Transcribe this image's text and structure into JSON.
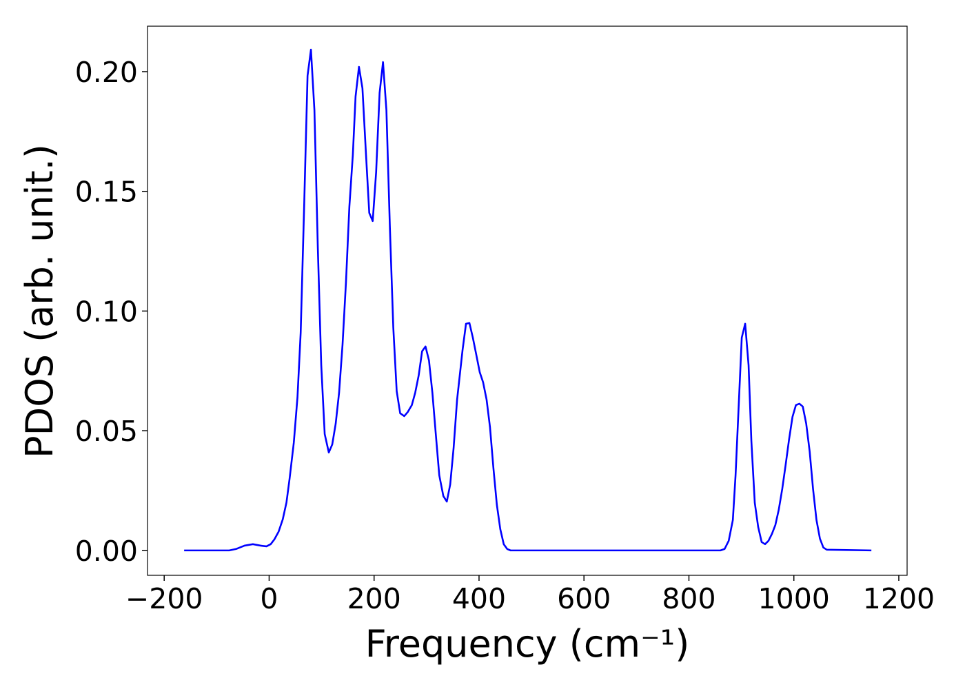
{
  "chart_data": {
    "type": "line",
    "xlabel": "Frequency (cm⁻¹)",
    "ylabel": "PDOS (arb. unit.)",
    "xlim": [
      -231.8,
      1215.8
    ],
    "ylim": [
      -0.0104,
      0.219
    ],
    "xticks": [
      {
        "value": -200,
        "label": "−200"
      },
      0,
      200,
      400,
      600,
      800,
      1000,
      1200
    ],
    "yticks": [
      {
        "value": 0,
        "label": "0.00"
      },
      0.05,
      {
        "value": 0.1,
        "label": "0.10"
      },
      0.15,
      {
        "value": 0.2,
        "label": "0.20"
      }
    ],
    "grid": false,
    "series": [
      {
        "color": "#0000ff",
        "x": [
          -162,
          -76,
          -63,
          -47,
          -31,
          -16,
          -5,
          3,
          10,
          18,
          26,
          33,
          39,
          47,
          54,
          60.1,
          66.7,
          73.2,
          79.7,
          86.3,
          92.8,
          99.3,
          105.9,
          113.7,
          120.3,
          126.8,
          133.3,
          139.9,
          146.4,
          152.9,
          159.5,
          164.7,
          171.2,
          177.8,
          184.3,
          190.8,
          197.4,
          203.9,
          210.5,
          217,
          223.5,
          230.1,
          236.6,
          243.1,
          249.7,
          257.5,
          264.1,
          271.9,
          278.4,
          285,
          291.5,
          298,
          304.6,
          311.1,
          317.6,
          324.2,
          332,
          338.6,
          345.1,
          351.6,
          358.2,
          368.6,
          375.2,
          381.7,
          388.2,
          394.8,
          401.3,
          407.8,
          414.4,
          420.9,
          427.5,
          434,
          440.5,
          447.1,
          453.6,
          460.1,
          860.1,
          868,
          875.8,
          883.7,
          888.9,
          895.4,
          900.7,
          907.2,
          913.7,
          919,
          925.5,
          932,
          938.6,
          945.1,
          951.6,
          958.2,
          964.7,
          971.2,
          977.8,
          984.3,
          990.8,
          997.4,
          1003.9,
          1010.5,
          1017,
          1023.5,
          1030.1,
          1036.6,
          1043.1,
          1049.7,
          1056.2,
          1062.7,
          1147.7
        ],
        "values": [
          0,
          0,
          0.0006,
          0.002,
          0.0026,
          0.002,
          0.0017,
          0.0026,
          0.0046,
          0.0078,
          0.013,
          0.02,
          0.03,
          0.045,
          0.064,
          0.0909,
          0.1436,
          0.1983,
          0.2092,
          0.1839,
          0.1263,
          0.0774,
          0.0486,
          0.0409,
          0.0443,
          0.0529,
          0.0659,
          0.086,
          0.1119,
          0.1436,
          0.1652,
          0.1896,
          0.202,
          0.1931,
          0.1666,
          0.141,
          0.1376,
          0.158,
          0.1911,
          0.204,
          0.1839,
          0.135,
          0.0932,
          0.0665,
          0.0573,
          0.0561,
          0.0578,
          0.0607,
          0.0659,
          0.0731,
          0.0832,
          0.0852,
          0.0794,
          0.0659,
          0.0486,
          0.0314,
          0.0227,
          0.0204,
          0.0276,
          0.0429,
          0.063,
          0.0837,
          0.0947,
          0.095,
          0.0889,
          0.0817,
          0.0745,
          0.0702,
          0.063,
          0.0515,
          0.0342,
          0.019,
          0.0089,
          0.0026,
          0.0006,
          0,
          0,
          0.0006,
          0.004,
          0.0127,
          0.0314,
          0.063,
          0.0889,
          0.0947,
          0.0774,
          0.0458,
          0.0199,
          0.0098,
          0.0035,
          0.0026,
          0.004,
          0.0069,
          0.0106,
          0.017,
          0.0256,
          0.0357,
          0.0463,
          0.0558,
          0.0607,
          0.0613,
          0.0601,
          0.053,
          0.0414,
          0.0256,
          0.0127,
          0.0049,
          0.0012,
          0.0003,
          0
        ]
      }
    ]
  }
}
